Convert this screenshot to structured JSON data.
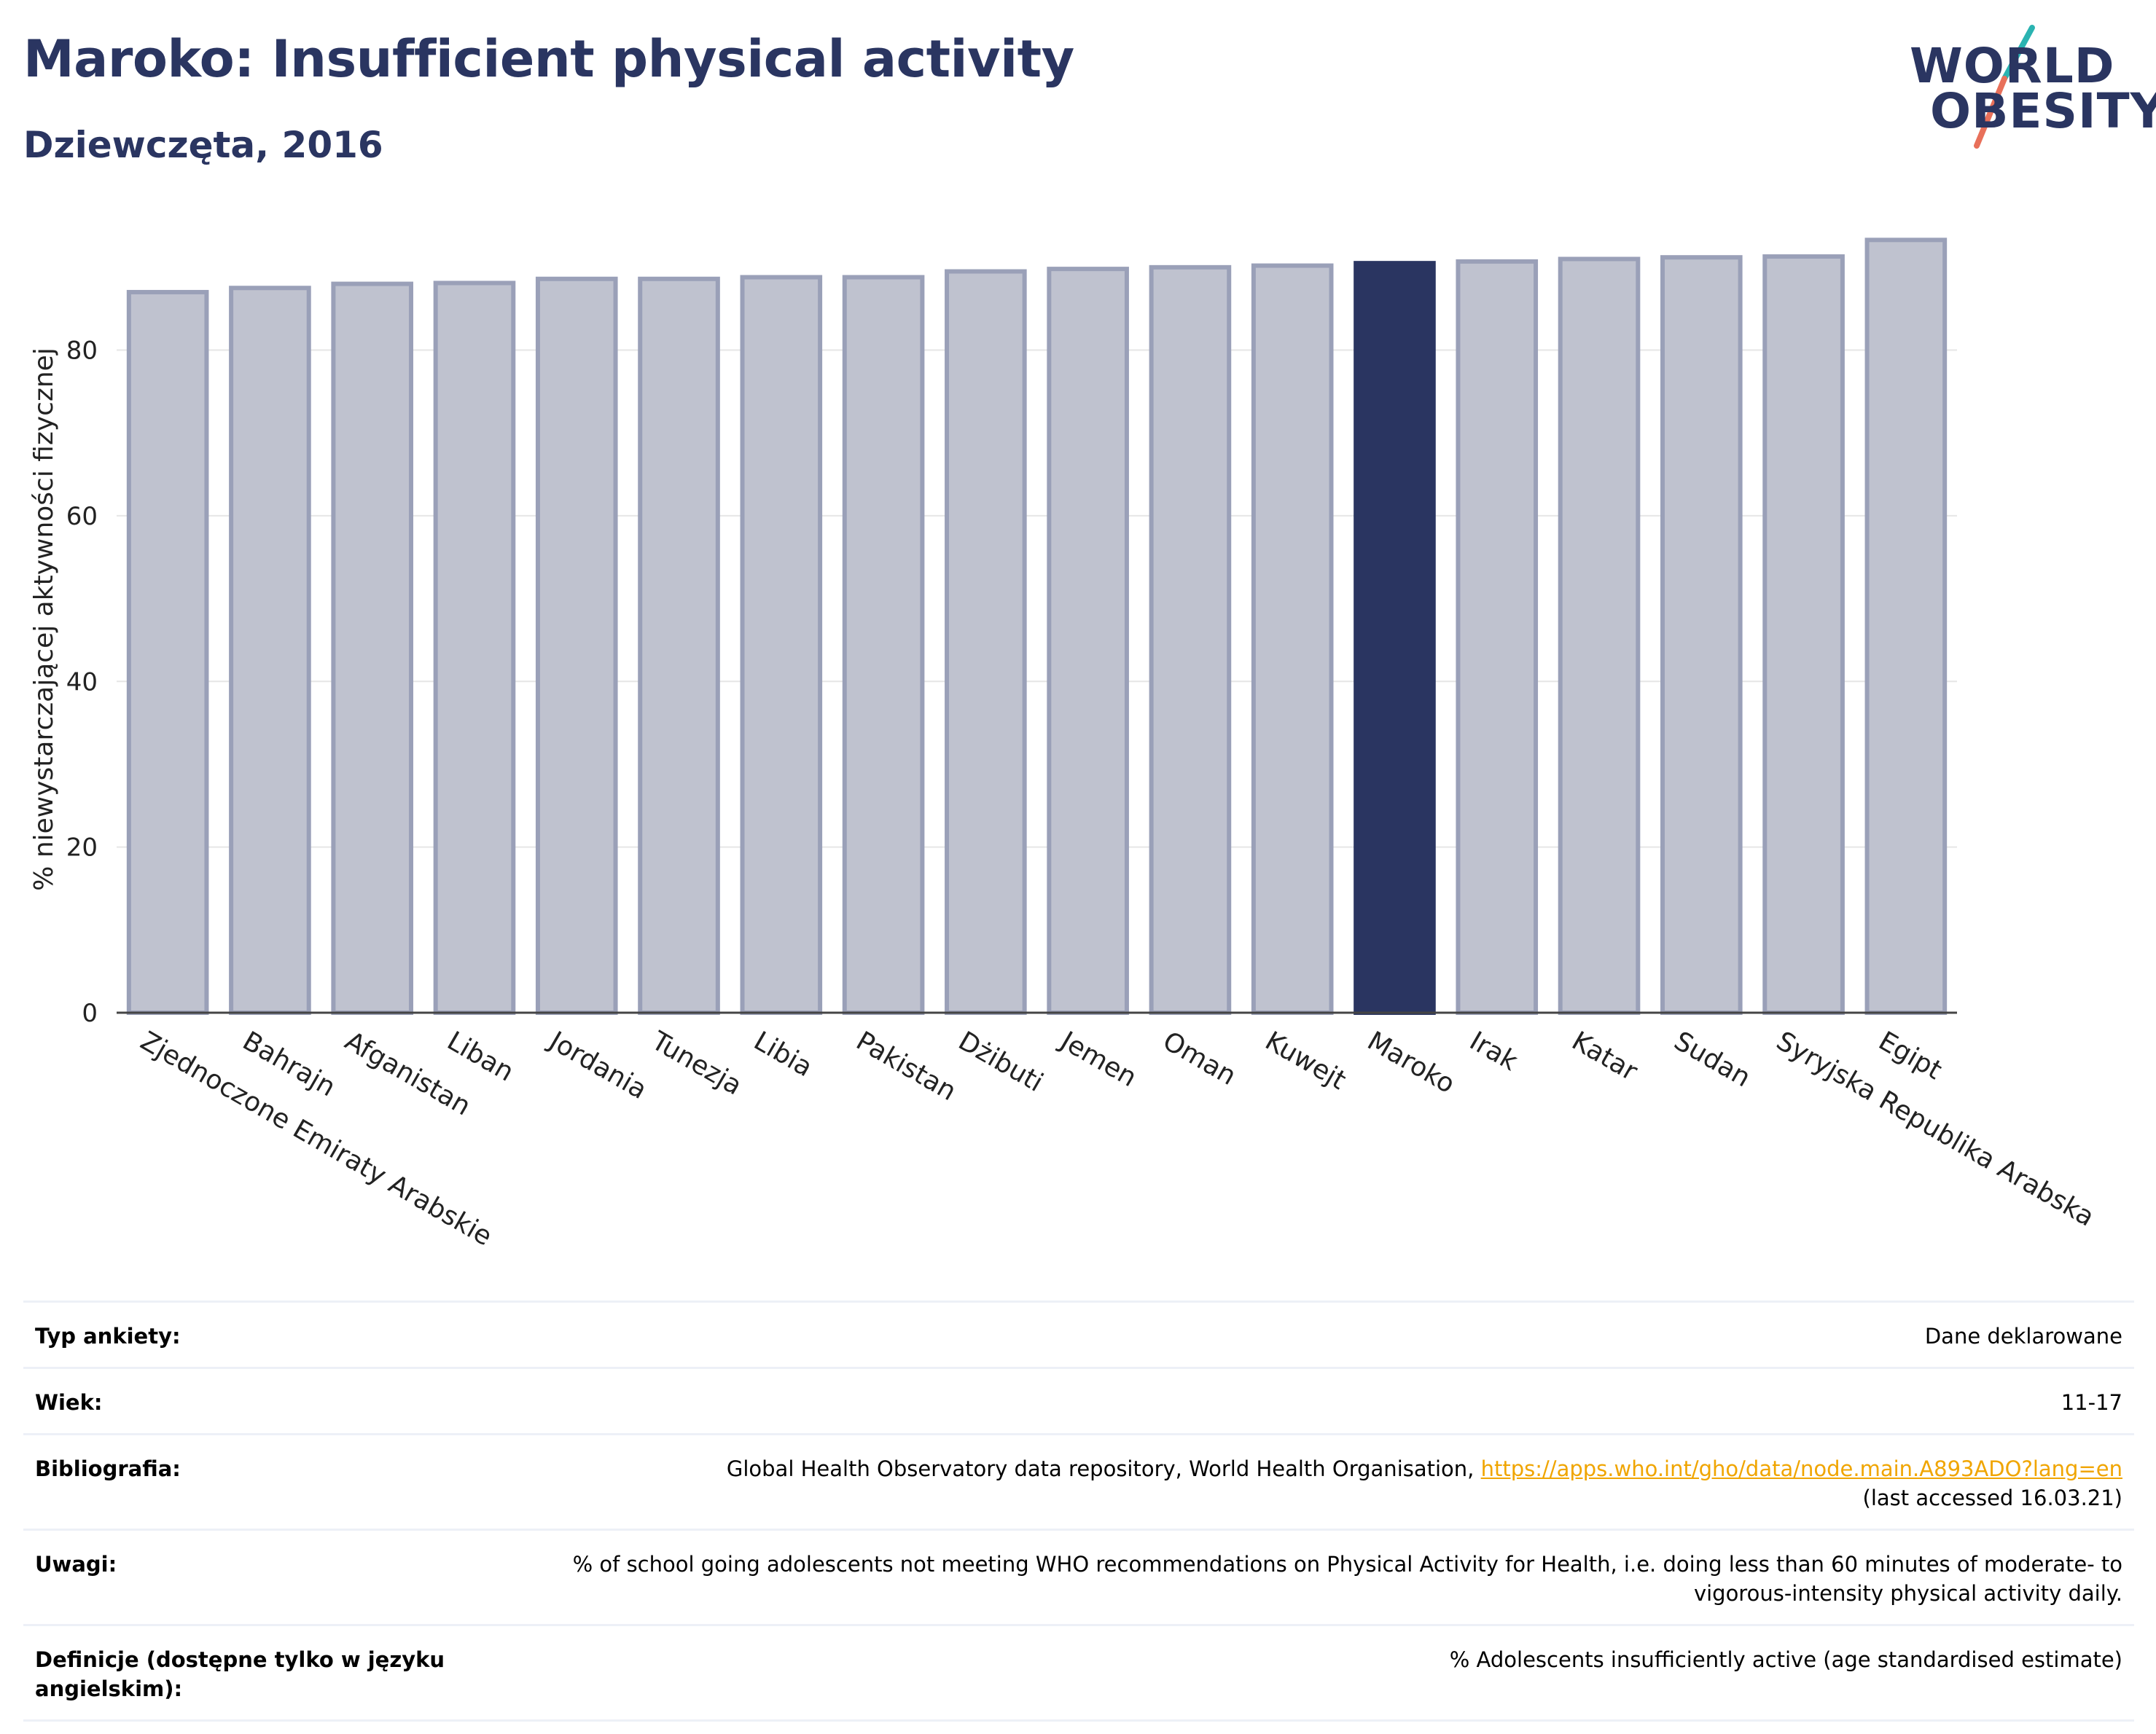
{
  "header": {
    "title": "Maroko: Insufficient physical activity",
    "subtitle": "Dziewczęta, 2016"
  },
  "logo": {
    "line1": "WORLD",
    "line2": "OBESITY"
  },
  "colors": {
    "bar_default": "#bfc2cf",
    "bar_default_border": "#9aa0b8",
    "bar_highlight": "#2a3561",
    "title": "#2a3561",
    "gridline": "#e6e6e6",
    "link": "#f0a500",
    "logo_slash_top": "#2ab3b1",
    "logo_slash_bottom": "#e8705a"
  },
  "chart_data": {
    "type": "bar",
    "ylabel": "% niewystarczającej aktywności fizycznej",
    "ylim": [
      0,
      95
    ],
    "yticks": [
      0,
      20,
      40,
      60,
      80
    ],
    "grid": true,
    "highlight": "Maroko",
    "categories": [
      "Zjednoczone Emiraty Arabskie",
      "Bahrajn",
      "Afganistan",
      "Liban",
      "Jordania",
      "Tunezja",
      "Libia",
      "Pakistan",
      "Dżibuti",
      "Jemen",
      "Oman",
      "Kuwejt",
      "Maroko",
      "Irak",
      "Katar",
      "Sudan",
      "Syryjska Republika Arabska",
      "Egipt"
    ],
    "values": [
      87.0,
      87.5,
      88.0,
      88.1,
      88.6,
      88.6,
      88.8,
      88.8,
      89.5,
      89.8,
      90.0,
      90.2,
      90.5,
      90.7,
      91.0,
      91.2,
      91.3,
      93.3
    ]
  },
  "meta": [
    {
      "label": "Typ ankiety:",
      "value": "Dane deklarowane"
    },
    {
      "label": "Wiek:",
      "value": "11-17"
    },
    {
      "label": "Bibliografia:",
      "value": "Global Health Observatory data repository, World Health Organisation, ",
      "link": "https://apps.who.int/gho/data/node.main.A893ADO?lang=en",
      "value2": "(last accessed 16.03.21)"
    },
    {
      "label": "Uwagi:",
      "value": "% of school going adolescents not meeting WHO recommendations on Physical Activity for Health, i.e. doing less than 60 minutes of moderate- to vigorous-intensity physical activity daily."
    },
    {
      "label": "Definicje (dostępne tylko w języku angielskim):",
      "value": "% Adolescents insufficiently active (age standardised estimate)"
    }
  ]
}
